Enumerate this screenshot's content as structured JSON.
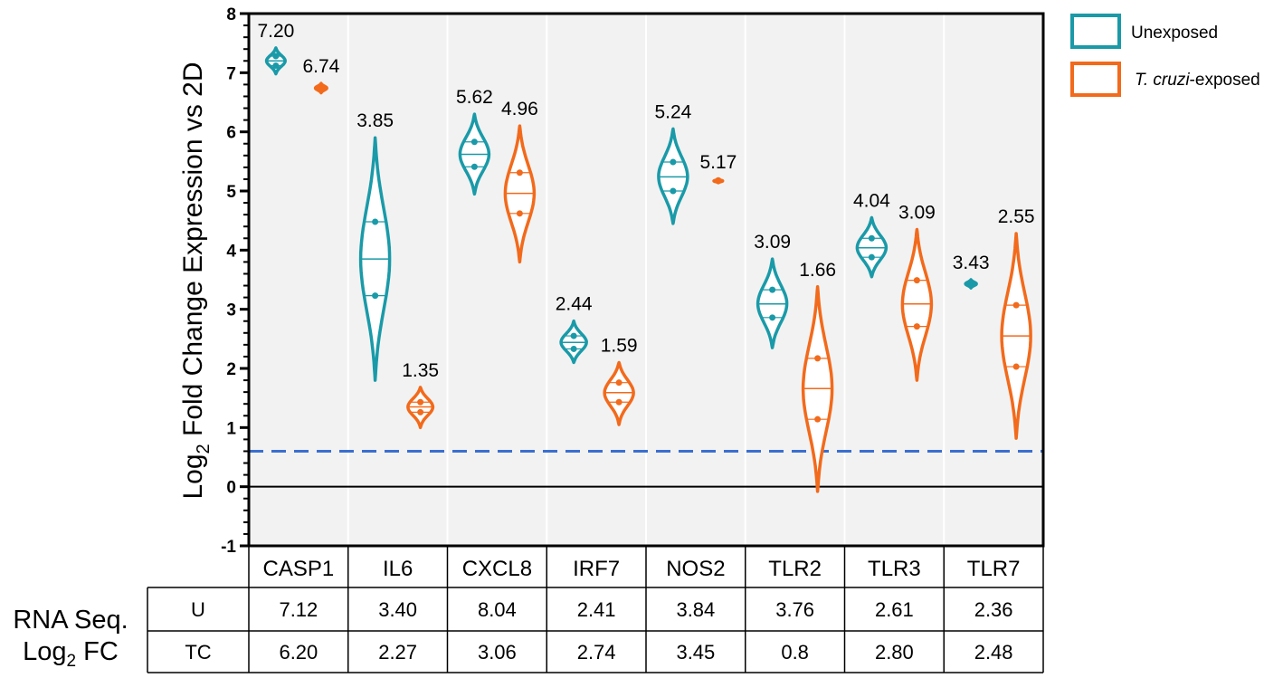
{
  "chart_data": {
    "type": "violin",
    "ylabel": "Log2 Fold Change Expression vs 2D",
    "ylabel_main": "Log",
    "ylabel_sub": "2",
    "ylabel_rest": " Fold Change Expression vs 2D",
    "ylim": [
      -1,
      8
    ],
    "yticks": [
      "-1",
      "0",
      "1",
      "2",
      "3",
      "4",
      "5",
      "6",
      "7",
      "8"
    ],
    "threshold_line": 0.6,
    "zero_line": 0,
    "categories": [
      "CASP1",
      "IL6",
      "CXCL8",
      "IRF7",
      "NOS2",
      "TLR2",
      "TLR3",
      "TLR7"
    ],
    "series": [
      {
        "name": "Unexposed",
        "color": "#1a9aa8",
        "means": [
          "7.20",
          "3.85",
          "5.62",
          "2.44",
          "5.24",
          "3.09",
          "4.04",
          "3.43"
        ],
        "mean_values": [
          7.2,
          3.85,
          5.62,
          2.44,
          5.24,
          3.09,
          4.04,
          3.43
        ],
        "ranges": [
          [
            6.98,
            7.42
          ],
          [
            1.8,
            5.9
          ],
          [
            4.95,
            6.3
          ],
          [
            2.1,
            2.8
          ],
          [
            4.45,
            6.05
          ],
          [
            2.35,
            3.85
          ],
          [
            3.55,
            4.55
          ],
          [
            3.36,
            3.5
          ]
        ],
        "points": [
          [
            7.28,
            7.12
          ],
          [
            4.48,
            3.23
          ],
          [
            5.83,
            5.41
          ],
          [
            2.55,
            2.33
          ],
          [
            5.49,
            5.0
          ],
          [
            3.33,
            2.86
          ],
          [
            4.2,
            3.88
          ],
          [
            3.46,
            3.41
          ]
        ],
        "quartiles": [
          [
            7.28,
            7.12
          ],
          [
            4.48,
            3.23
          ],
          [
            5.83,
            5.41
          ],
          [
            2.55,
            2.33
          ],
          [
            5.49,
            5.0
          ],
          [
            3.33,
            2.86
          ],
          [
            4.2,
            3.88
          ],
          [
            3.46,
            3.41
          ]
        ]
      },
      {
        "name": "T. cruzi-exposed",
        "name_italic": "T. cruzi",
        "name_rest": "-exposed",
        "color": "#f26a1b",
        "means": [
          "6.74",
          "1.35",
          "4.96",
          "1.59",
          "5.17",
          "1.66",
          "3.09",
          "2.55"
        ],
        "mean_values": [
          6.74,
          1.35,
          4.96,
          1.59,
          5.17,
          1.66,
          3.09,
          2.55
        ],
        "ranges": [
          [
            6.66,
            6.82
          ],
          [
            1.0,
            1.68
          ],
          [
            3.8,
            6.1
          ],
          [
            1.05,
            2.1
          ],
          [
            5.14,
            5.2
          ],
          [
            -0.08,
            3.38
          ],
          [
            1.8,
            4.35
          ],
          [
            0.82,
            4.28
          ]
        ],
        "points": [
          [
            6.76,
            6.72
          ],
          [
            1.43,
            1.26
          ],
          [
            5.31,
            4.62
          ],
          [
            1.76,
            1.43
          ],
          [
            5.18,
            5.17
          ],
          [
            2.17,
            1.14
          ],
          [
            3.49,
            2.71
          ],
          [
            3.07,
            2.03
          ]
        ],
        "quartiles": [
          [
            6.76,
            6.72
          ],
          [
            1.43,
            1.26
          ],
          [
            5.31,
            4.62
          ],
          [
            1.76,
            1.43
          ],
          [
            5.18,
            5.17
          ],
          [
            2.17,
            1.14
          ],
          [
            3.49,
            2.71
          ],
          [
            3.07,
            2.03
          ]
        ]
      }
    ],
    "legend_position": "top-right"
  },
  "table": {
    "side_label_line1": "RNA Seq.",
    "side_label_line2_main": "Log",
    "side_label_line2_sub": "2",
    "side_label_line2_rest": " FC",
    "rows": [
      {
        "header": "U",
        "values": [
          "7.12",
          "3.40",
          "8.04",
          "2.41",
          "3.84",
          "3.76",
          "2.61",
          "2.36"
        ]
      },
      {
        "header": "TC",
        "values": [
          "6.20",
          "2.27",
          "3.06",
          "2.74",
          "3.45",
          "0.8",
          "2.80",
          "2.48"
        ]
      }
    ]
  }
}
